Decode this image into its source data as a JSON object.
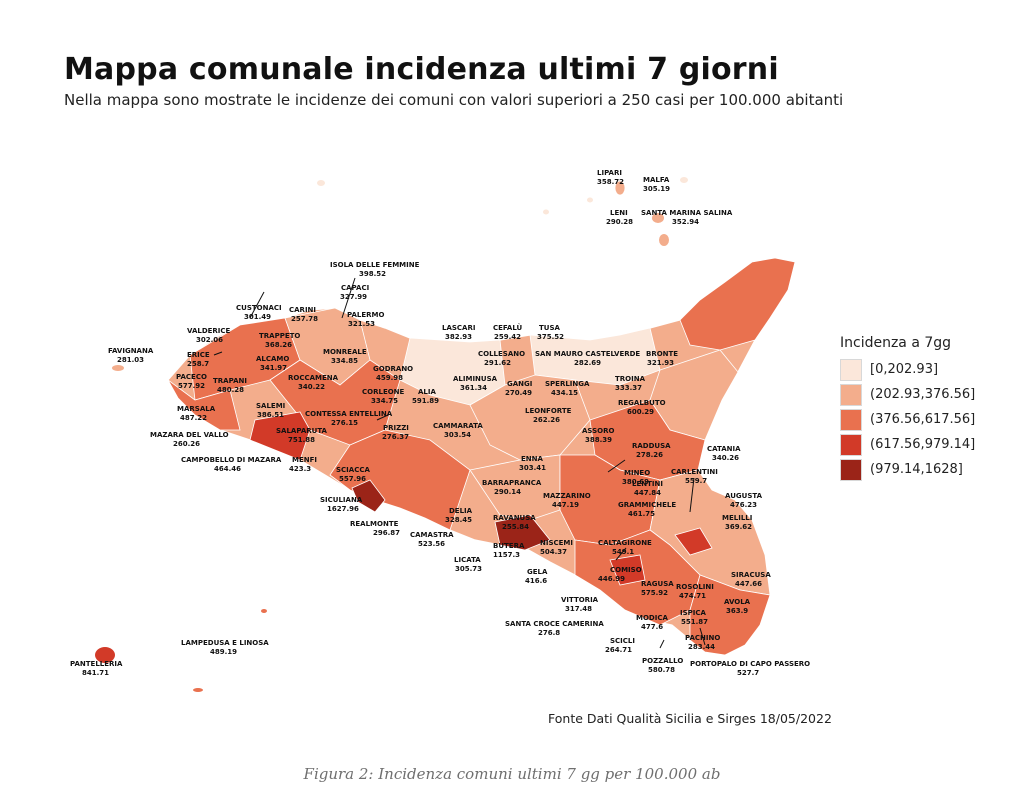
{
  "title": "Mappa comunale incidenza ultimi 7 giorni",
  "subtitle": "Nella mappa sono mostrate le incidenze dei comuni con valori superiori a 250 casi per 100.000 abitanti",
  "legend": {
    "title": "Incidenza a 7gg",
    "items": [
      {
        "label": "[0,202.93]",
        "color": "#fbe7da"
      },
      {
        "label": "(202.93,376.56]",
        "color": "#f3ad8c"
      },
      {
        "label": "(376.56,617.56]",
        "color": "#e9714f"
      },
      {
        "label": "(617.56,979.14]",
        "color": "#d23a28"
      },
      {
        "label": "(979.14,1628]",
        "color": "#9b2418"
      }
    ]
  },
  "source": "Fonte Dati Qualità Sicilia e Sirges 18/05/2022",
  "caption": "Figura 2: Incidenza comuni ultimi 7 gg per 100.000 ab",
  "municipalities": [
    {
      "name": "LIPARI",
      "value": "358.72"
    },
    {
      "name": "MALFA",
      "value": "305.19"
    },
    {
      "name": "LENI",
      "value": "290.28"
    },
    {
      "name": "SANTA MARINA SALINA",
      "value": "352.94"
    },
    {
      "name": "ISOLA DELLE FEMMINE",
      "value": "398.52"
    },
    {
      "name": "CAPACI",
      "value": "327.99"
    },
    {
      "name": "CUSTONACI",
      "value": "301.49"
    },
    {
      "name": "CARINI",
      "value": "257.78"
    },
    {
      "name": "PALERMO",
      "value": "321.53"
    },
    {
      "name": "VALDERICE",
      "value": "302.06"
    },
    {
      "name": "TRAPPETO",
      "value": "368.26"
    },
    {
      "name": "LASCARI",
      "value": "382.93"
    },
    {
      "name": "CEFALÙ",
      "value": "259.42"
    },
    {
      "name": "TUSA",
      "value": "375.52"
    },
    {
      "name": "FAVIGNANA",
      "value": "281.03"
    },
    {
      "name": "ERICE",
      "value": "258.7"
    },
    {
      "name": "ALCAMO",
      "value": "341.97"
    },
    {
      "name": "MONREALE",
      "value": "334.85"
    },
    {
      "name": "COLLESANO",
      "value": "291.62"
    },
    {
      "name": "SAN MAURO CASTELVERDE",
      "value": "282.69"
    },
    {
      "name": "BRONTE",
      "value": "321.93"
    },
    {
      "name": "PACECO",
      "value": "577.92"
    },
    {
      "name": "TRAPANI",
      "value": "480.28"
    },
    {
      "name": "ROCCAMENA",
      "value": "340.22"
    },
    {
      "name": "GODRANO",
      "value": "459.98"
    },
    {
      "name": "ALIMINUSA",
      "value": "361.34"
    },
    {
      "name": "TROINA",
      "value": "333.37"
    },
    {
      "name": "GANGI",
      "value": "270.49"
    },
    {
      "name": "SPERLINGA",
      "value": "434.15"
    },
    {
      "name": "MARSALA",
      "value": "487.22"
    },
    {
      "name": "SALEMI",
      "value": "386.51"
    },
    {
      "name": "CORLEONE",
      "value": "334.75"
    },
    {
      "name": "ALIA",
      "value": "591.89"
    },
    {
      "name": "REGALBUTO",
      "value": "600.29"
    },
    {
      "name": "CONTESSA ENTELLINA",
      "value": "276.15"
    },
    {
      "name": "LEONFORTE",
      "value": "262.26"
    },
    {
      "name": "MAZARA DEL VALLO",
      "value": "260.26"
    },
    {
      "name": "PRIZZI",
      "value": "276.37"
    },
    {
      "name": "CAMMARATA",
      "value": "303.54"
    },
    {
      "name": "ASSORO",
      "value": "388.39"
    },
    {
      "name": "SALAPARUTA",
      "value": "751.88"
    },
    {
      "name": "RADDUSA",
      "value": "278.26"
    },
    {
      "name": "CATANIA",
      "value": "340.26"
    },
    {
      "name": "CAMPOBELLO DI MAZARA",
      "value": "464.46"
    },
    {
      "name": "MENFI",
      "value": "423.3"
    },
    {
      "name": "ENNA",
      "value": "303.41"
    },
    {
      "name": "MINEO",
      "value": "380.69"
    },
    {
      "name": "LENTINI",
      "value": "447.84"
    },
    {
      "name": "CARLENTINI",
      "value": "559.7"
    },
    {
      "name": "SCIACCA",
      "value": "557.96"
    },
    {
      "name": "BARRAPRANCA",
      "value": "290.14"
    },
    {
      "name": "AUGUSTA",
      "value": "476.23"
    },
    {
      "name": "SICULIANA",
      "value": "1627.96"
    },
    {
      "name": "MAZZARINO",
      "value": "447.19"
    },
    {
      "name": "GRAMMICHELE",
      "value": "461.75"
    },
    {
      "name": "MELILLI",
      "value": "369.62"
    },
    {
      "name": "DELIA",
      "value": "328.45"
    },
    {
      "name": "REALMONTE",
      "value": "296.87"
    },
    {
      "name": "RAVANUSA",
      "value": "255.84"
    },
    {
      "name": "CAMASTRA",
      "value": "523.56"
    },
    {
      "name": "CALTAGIRONE",
      "value": "549.1"
    },
    {
      "name": "BUTERA",
      "value": "1157.3"
    },
    {
      "name": "NISCEMI",
      "value": "504.37"
    },
    {
      "name": "LICATA",
      "value": "305.73"
    },
    {
      "name": "GELA",
      "value": "416.6"
    },
    {
      "name": "COMISO",
      "value": "446.99"
    },
    {
      "name": "SIRACUSA",
      "value": "447.66"
    },
    {
      "name": "RAGUSA",
      "value": "575.92"
    },
    {
      "name": "ROSOLINI",
      "value": "474.71"
    },
    {
      "name": "VITTORIA",
      "value": "317.48"
    },
    {
      "name": "AVOLA",
      "value": "363.9"
    },
    {
      "name": "ISPICA",
      "value": "551.87"
    },
    {
      "name": "SANTA CROCE CAMERINA",
      "value": "276.8"
    },
    {
      "name": "MODICA",
      "value": "477.6"
    },
    {
      "name": "LAMPEDUSA E LINOSA",
      "value": "489.19"
    },
    {
      "name": "PACHINO",
      "value": "283.44"
    },
    {
      "name": "SCICLI",
      "value": "264.71"
    },
    {
      "name": "PANTELLERIA",
      "value": "841.71"
    },
    {
      "name": "POZZALLO",
      "value": "580.78"
    },
    {
      "name": "PORTOPALO DI CAPO PASSERO",
      "value": "527.7"
    }
  ]
}
